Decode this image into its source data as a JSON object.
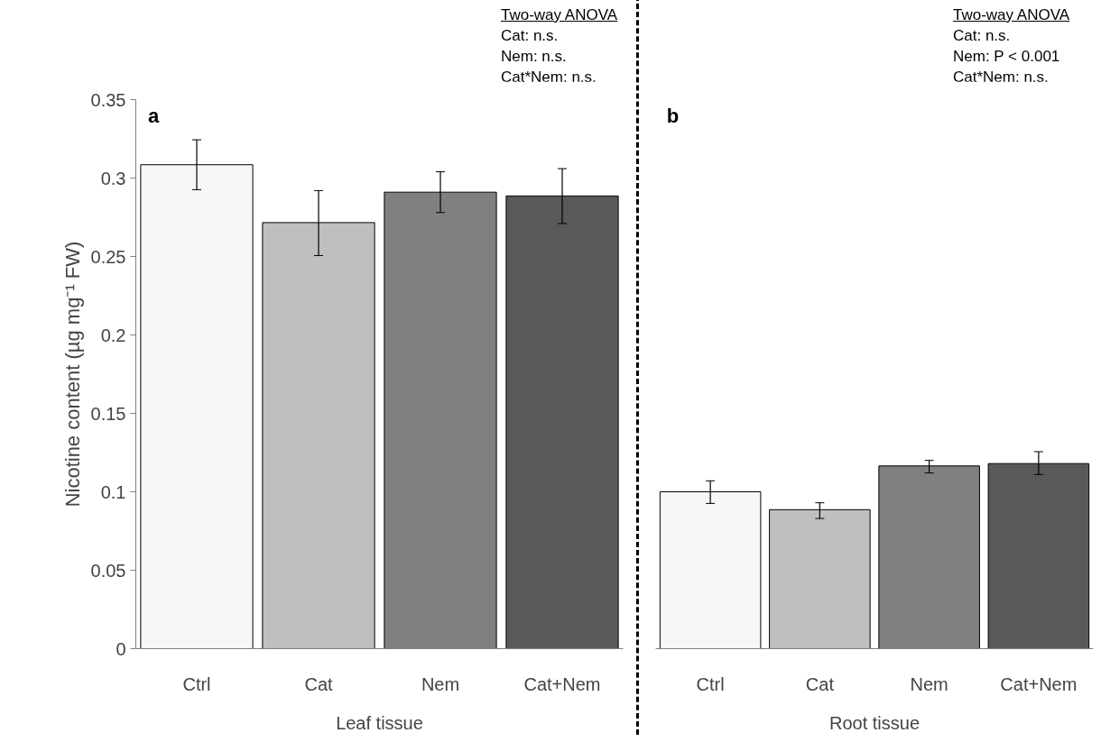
{
  "chart_data": [
    {
      "type": "bar",
      "xlabel": "Leaf tissue",
      "ylabel": "Nicotine content (µg mg⁻¹ FW)",
      "categories": [
        "Ctrl",
        "Cat",
        "Nem",
        "Cat+Nem"
      ],
      "values": [
        0.3085,
        0.2716,
        0.291,
        0.2886
      ],
      "colors": [
        "#f7f7f7",
        "#bfbfbf",
        "#808080",
        "#595959"
      ],
      "errors": [
        [
          0.2926,
          0.3244
        ],
        [
          0.2506,
          0.292
        ],
        [
          0.278,
          0.304
        ],
        [
          0.271,
          0.306
        ]
      ],
      "ylim": [
        0,
        0.35
      ],
      "yticks": [
        0,
        0.05,
        0.1,
        0.15,
        0.2,
        0.25,
        0.3,
        0.35
      ],
      "grid": false,
      "annotations": [
        "a",
        "Two-way ANOVA",
        "Cat: n.s.",
        "Nem: n.s.",
        "Cat*Nem: n.s."
      ]
    },
    {
      "type": "bar",
      "xlabel": "Root tissue",
      "categories": [
        "Ctrl",
        "Cat",
        "Nem",
        "Cat+Nem"
      ],
      "values": [
        0.1,
        0.0886,
        0.1165,
        0.118
      ],
      "colors": [
        "#f7f7f7",
        "#bfbfbf",
        "#808080",
        "#595959"
      ],
      "errors": [
        [
          0.0926,
          0.107
        ],
        [
          0.083,
          0.093
        ],
        [
          0.112,
          0.12
        ],
        [
          0.111,
          0.1256
        ]
      ],
      "ylim": [
        0,
        0.35
      ],
      "yticks": [
        0,
        0.05,
        0.1,
        0.15,
        0.2,
        0.25,
        0.3,
        0.35
      ],
      "grid": false,
      "tick_labels": "x",
      "annotations": [
        "b",
        "Two-way ANOVA",
        "Cat: n.s.",
        "Nem: P < 0.001",
        "Cat*Nem: n.s."
      ]
    }
  ]
}
